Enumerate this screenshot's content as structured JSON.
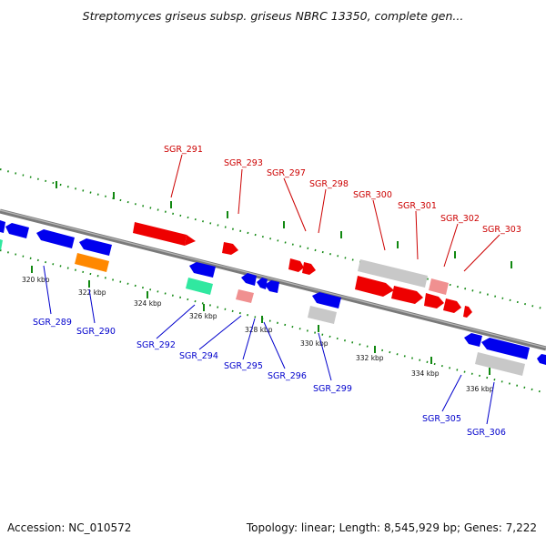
{
  "title": "Streptomyces griseus subsp. griseus NBRC 13350, complete gen...",
  "footer": {
    "accession": "Accession: NC_010572",
    "summary": "Topology: linear; Length: 8,545,929 bp; Genes: 7,222"
  },
  "colors": {
    "backbone": "#7a7a7a",
    "forward_gene": "#ee0000",
    "reverse_gene": "#0000ee",
    "rna": "#ff8800",
    "pseudo": "#c8c8c8",
    "misc_pink": "#f09090",
    "misc_cyan": "#30e8a0",
    "tick": "#118811",
    "label_forward": "#cc0000",
    "label_reverse": "#0000cc"
  },
  "scale_labels": [
    "320 kbp",
    "322 kbp",
    "324 kbp",
    "326 kbp",
    "328 kbp",
    "330 kbp",
    "332 kbp",
    "334 kbp",
    "336 kbp"
  ],
  "gene_labels_top": [
    "SGR_291",
    "SGR_293",
    "SGR_297",
    "SGR_298",
    "SGR_300",
    "SGR_301",
    "SGR_302",
    "SGR_303"
  ],
  "gene_labels_bottom": [
    "SGR_289",
    "SGR_290",
    "SGR_292",
    "SGR_294",
    "SGR_295",
    "SGR_296",
    "SGR_299",
    "SGR_305",
    "SGR_306"
  ]
}
